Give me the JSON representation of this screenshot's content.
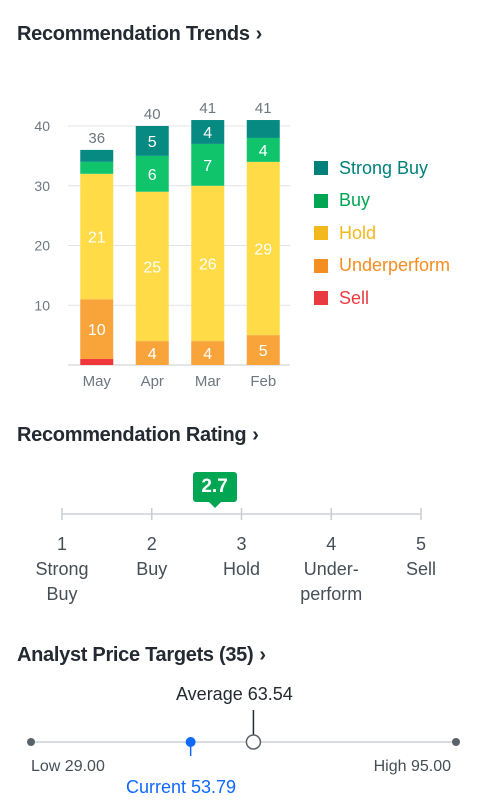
{
  "trends": {
    "title": "Recommendation Trends",
    "chevron": "›",
    "chart_data": {
      "type": "bar",
      "stacked": true,
      "categories": [
        "May",
        "Apr",
        "Mar",
        "Feb"
      ],
      "totals": [
        36,
        40,
        41,
        41
      ],
      "ylim": [
        0,
        40
      ],
      "yticks": [
        10,
        20,
        30,
        40
      ],
      "series": [
        {
          "name": "Sell",
          "color": "#f0353b",
          "values": [
            1,
            0,
            0,
            0
          ]
        },
        {
          "name": "Underperform",
          "color": "#f8a43b",
          "values": [
            10,
            4,
            4,
            5
          ]
        },
        {
          "name": "Hold",
          "color": "#ffdb48",
          "values": [
            21,
            25,
            26,
            29
          ]
        },
        {
          "name": "Buy",
          "color": "#0fc46b",
          "values": [
            2,
            6,
            7,
            4
          ]
        },
        {
          "name": "Strong Buy",
          "color": "#078a82",
          "values": [
            2,
            5,
            4,
            3
          ]
        }
      ],
      "legend_order": [
        "Strong Buy",
        "Buy",
        "Hold",
        "Underperform",
        "Sell"
      ],
      "legend_colors": {
        "Strong Buy": "#00807a",
        "Buy": "#00a651",
        "Hold": "#f2b81c",
        "Underperform": "#f48e20",
        "Sell": "#e83a3f"
      },
      "labeled_min": 4
    }
  },
  "rating": {
    "title": "Recommendation Rating",
    "chevron": "›",
    "value": "2.7",
    "value_num": 2.7,
    "scale": [
      {
        "num": "1",
        "label1": "Strong",
        "label2": "Buy"
      },
      {
        "num": "2",
        "label1": "Buy",
        "label2": ""
      },
      {
        "num": "3",
        "label1": "Hold",
        "label2": ""
      },
      {
        "num": "4",
        "label1": "Under-",
        "label2": "perform"
      },
      {
        "num": "5",
        "label1": "Sell",
        "label2": ""
      }
    ]
  },
  "targets": {
    "title": "Analyst Price Targets (35)",
    "chevron": "›",
    "low_label": "Low 29.00",
    "high_label": "High 95.00",
    "average_label": "Average 63.54",
    "current_label": "Current 53.79",
    "low": 29.0,
    "high": 95.0,
    "average": 63.54,
    "current": 53.79,
    "current_color": "#0f69ff"
  }
}
